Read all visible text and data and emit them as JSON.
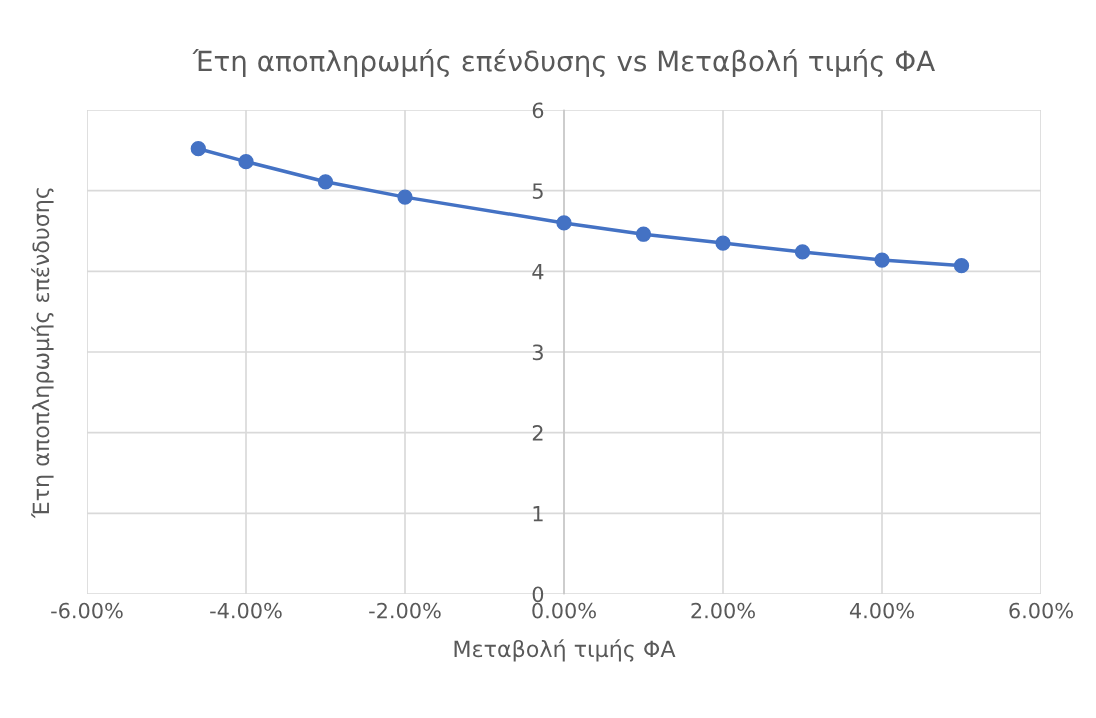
{
  "chart_data": {
    "type": "line",
    "title": "Έτη αποπληρωμής επένδυσης vs Μεταβολή τιμής ΦΑ",
    "xlabel": "Μεταβολή τιμής ΦΑ",
    "ylabel": "Έτη αποπληρωμής επένδυσης",
    "series": [
      {
        "color": "#4472c4",
        "x": [
          -4.6,
          -4,
          -3,
          -2,
          0,
          1,
          2,
          3,
          4,
          5
        ],
        "values": [
          5.52,
          5.36,
          5.11,
          4.92,
          4.6,
          4.46,
          4.35,
          4.24,
          4.14,
          4.07
        ]
      }
    ],
    "line_style": "solid",
    "marker": "circle",
    "grid": true,
    "xlim": [
      -6,
      6
    ],
    "ylim": [
      0,
      6
    ],
    "xticks": [
      {
        "value": -6,
        "label": "-6.00%"
      },
      {
        "value": -4,
        "label": "-4.00%"
      },
      {
        "value": -2,
        "label": "-2.00%"
      },
      {
        "value": 0,
        "label": "0.00%"
      },
      {
        "value": 2,
        "label": "2.00%"
      },
      {
        "value": 4,
        "label": "4.00%"
      },
      {
        "value": 6,
        "label": "6.00%"
      }
    ],
    "yticks": [
      0,
      1,
      2,
      3,
      4,
      5,
      6
    ]
  }
}
